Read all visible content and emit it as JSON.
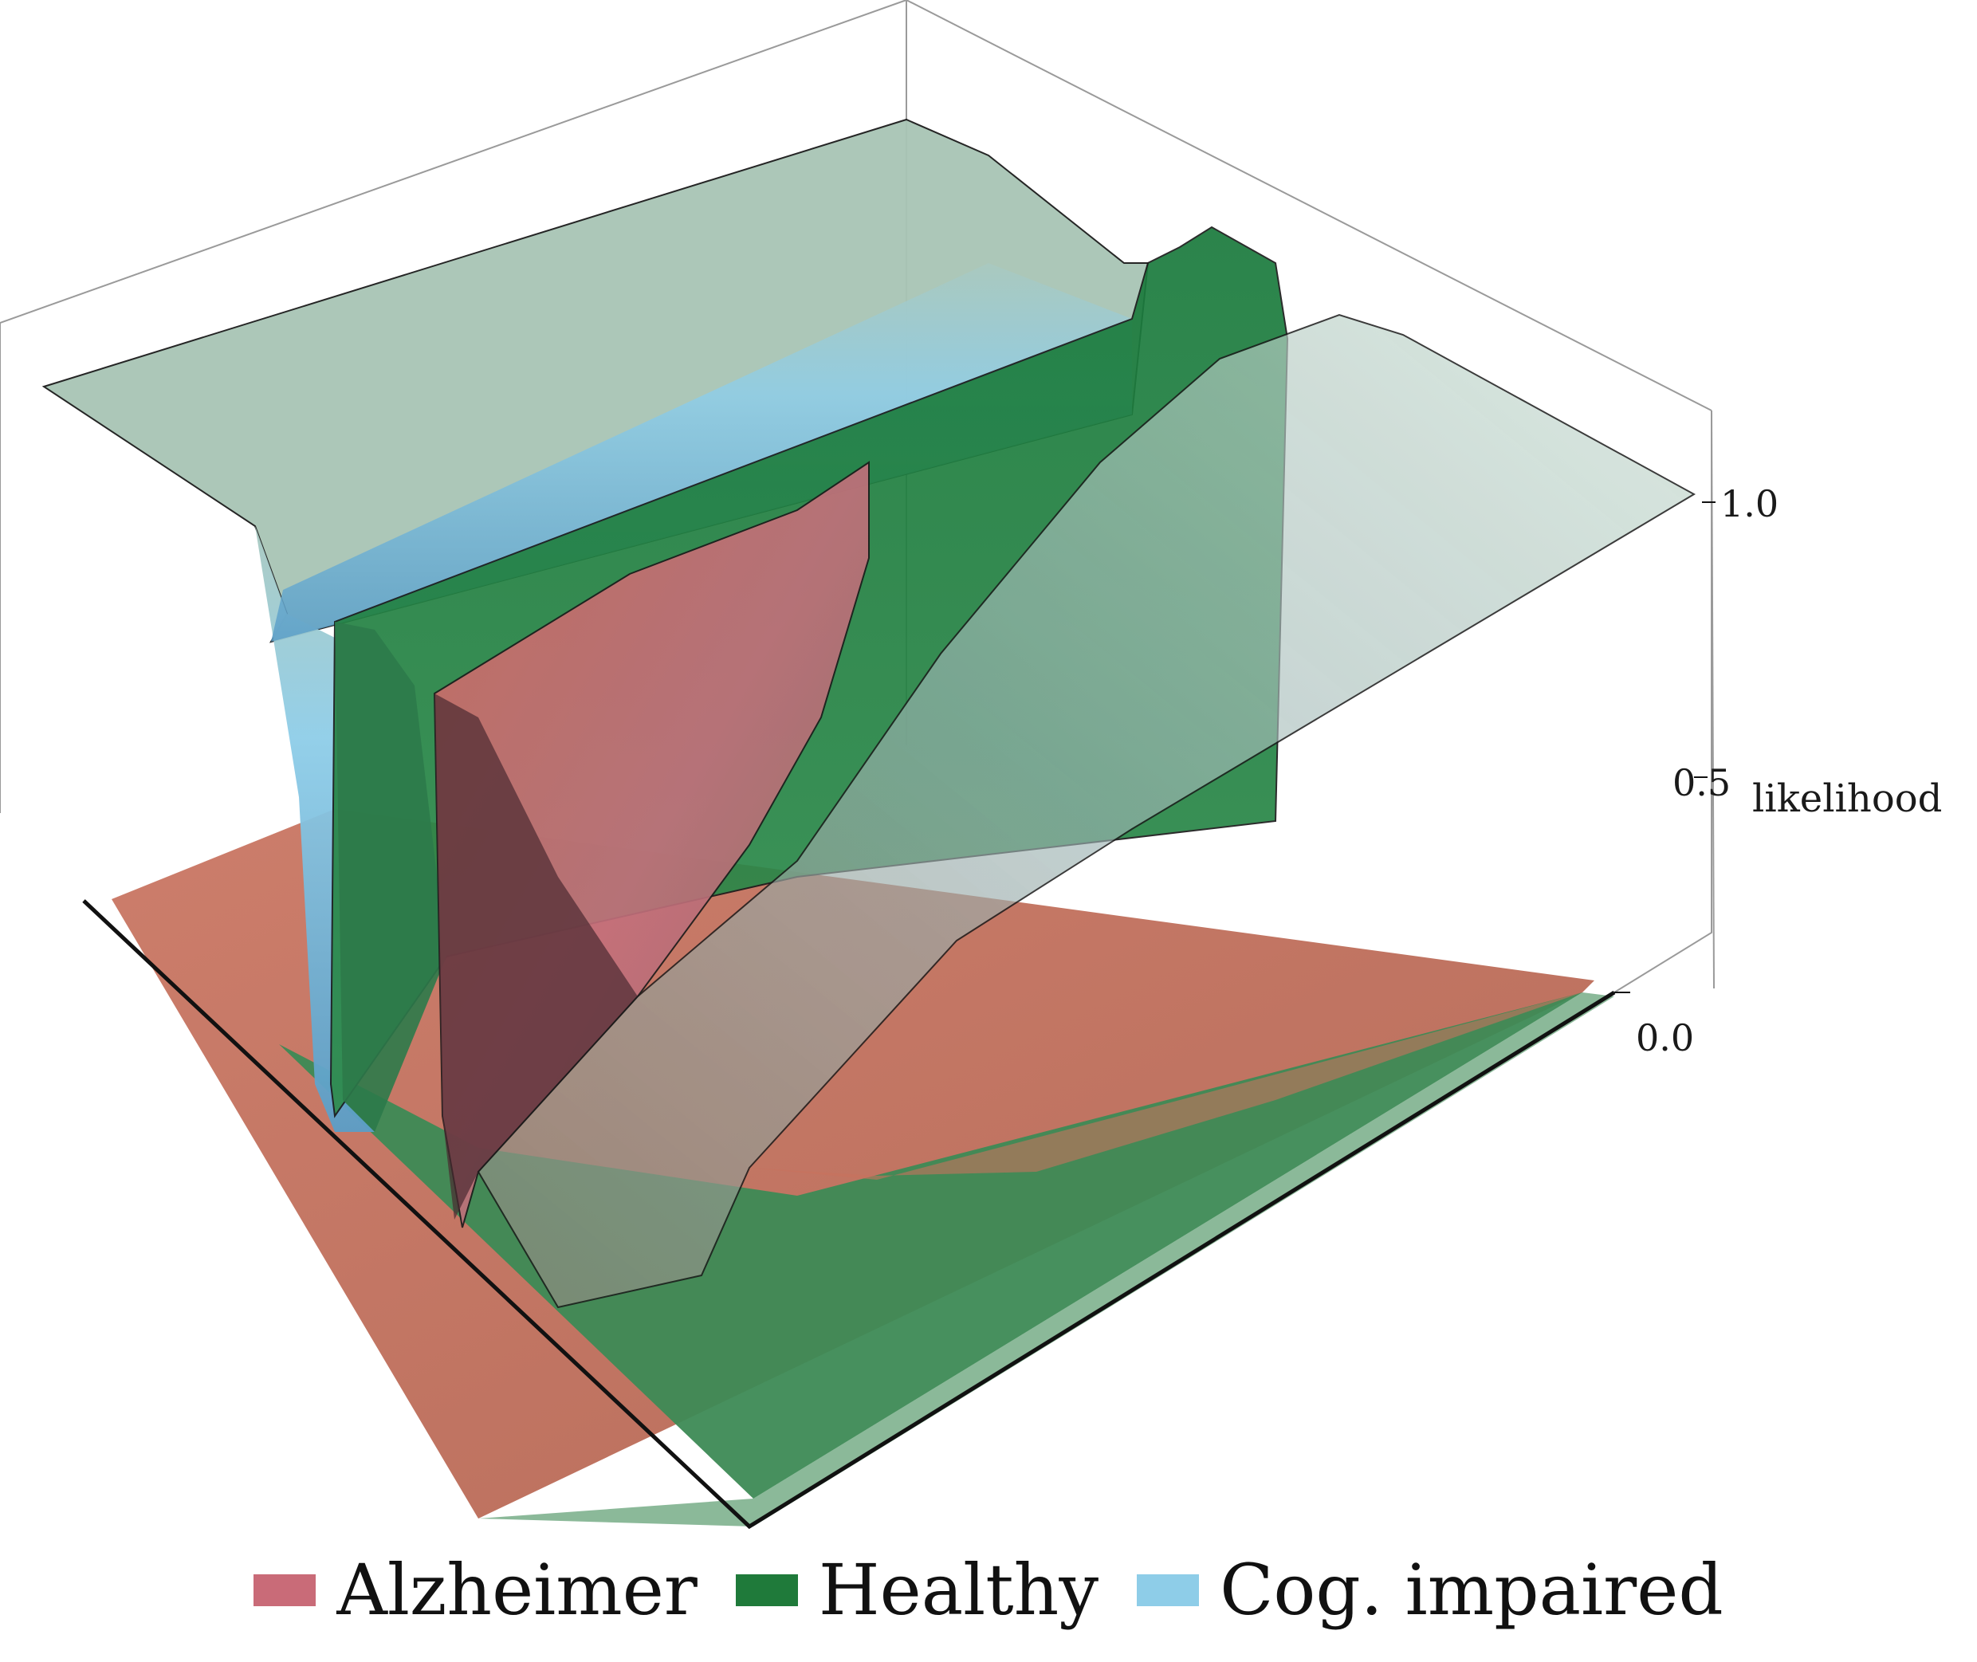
{
  "chart_data": {
    "type": "surface3d",
    "z_axis": {
      "label": "likelihood",
      "ticks": [
        "0.0",
        "0.5",
        "1.0"
      ],
      "range": [
        0,
        1
      ]
    },
    "grid": false,
    "box": true,
    "legend_position": "bottom",
    "series": [
      {
        "name": "Alzheimer",
        "color": "#c96b78",
        "description_level": {
          "low_region": 0.0,
          "ridge_peak": 0.85
        }
      },
      {
        "name": "Healthy",
        "color": "#1f7a3a",
        "description_level": {
          "low_region": 0.0,
          "plateau": 0.95
        }
      },
      {
        "name": "Cog. impaired",
        "color": "#8ecde8",
        "description_level": {
          "low_region": 0.0,
          "plateau": 1.0
        }
      }
    ]
  },
  "legend": {
    "items": [
      {
        "label": "Alzheimer",
        "color": "#c96b78"
      },
      {
        "label": "Healthy",
        "color": "#1f7a3a"
      },
      {
        "label": "Cog. impaired",
        "color": "#8ecde8"
      }
    ]
  }
}
